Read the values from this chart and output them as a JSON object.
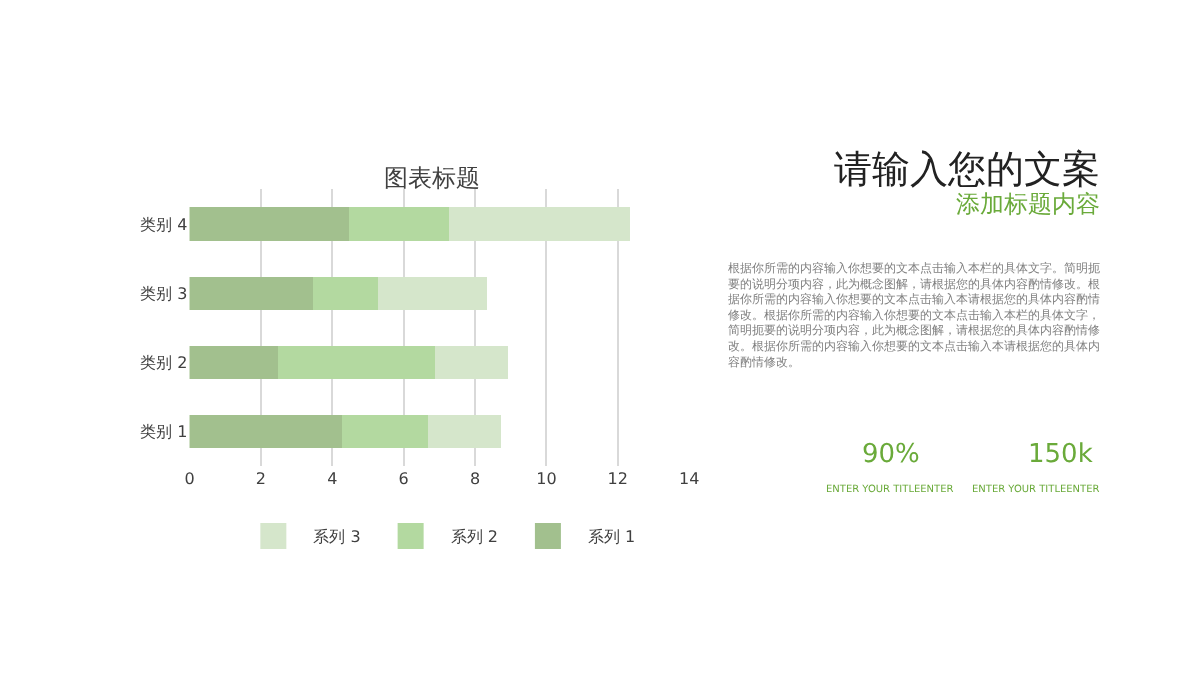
{
  "chart_data": [
    {
      "type": "bar",
      "title": "图表标题",
      "orientation": "horizontal",
      "stacked": true,
      "categories": [
        "类别 4",
        "类别 3",
        "类别 2",
        "类别 1"
      ],
      "series": [
        {
          "name": "系列 1",
          "color": "#a2c08e",
          "values": [
            4.5,
            3.5,
            2.5,
            4.3
          ]
        },
        {
          "name": "系列 2",
          "color": "#b3d9a0",
          "values": [
            2.8,
            1.8,
            4.4,
            2.4
          ]
        },
        {
          "name": "系列 3",
          "color": "#d5e6cb",
          "values": [
            5.0,
            3.0,
            2.0,
            2.0
          ]
        }
      ],
      "xlim": [
        0,
        14
      ],
      "xticks": [
        0,
        2,
        4,
        6,
        8,
        10,
        12,
        14
      ],
      "grid": "x",
      "legend": "bottom"
    },
    {
      "type": "other",
      "title": "请输入您的文案",
      "subtitle": "添加标题内容",
      "annotations": [
        "根据你所需的内容输入你想要的文本点击输入本栏的具体文字。简明扼要的说明分项内容，此为概念图解，请根据您的具体内容酌情修改。根据你所需的内容输入你想要的文本点击输入本请根据您的具体内容酌情修改。根据你所需的内容输入你想要的文本点击输入本栏的具体文字，简明扼要的说明分项内容，此为概念图解，请根据您的具体内容酌情修改。根据你所需的内容输入你想要的文本点击输入本请根据您的具体内容酌情修改。",
        "90%",
        "ENTER YOUR TITLEENTER",
        "150k",
        "ENTER YOUR TITLEENTER"
      ]
    }
  ]
}
